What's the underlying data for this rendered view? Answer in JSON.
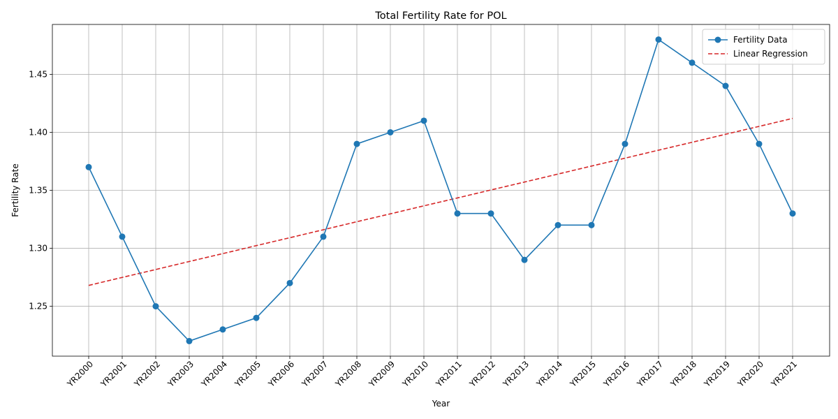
{
  "chart_data": {
    "type": "line",
    "title": "Total Fertility Rate for POL",
    "xlabel": "Year",
    "ylabel": "Fertility Rate",
    "categories": [
      "YR2000",
      "YR2001",
      "YR2002",
      "YR2003",
      "YR2004",
      "YR2005",
      "YR2006",
      "YR2007",
      "YR2008",
      "YR2009",
      "YR2010",
      "YR2011",
      "YR2012",
      "YR2013",
      "YR2014",
      "YR2015",
      "YR2016",
      "YR2017",
      "YR2018",
      "YR2019",
      "YR2020",
      "YR2021"
    ],
    "series": [
      {
        "name": "Fertility Data",
        "style": "solid-with-markers",
        "color": "#1f77b4",
        "values": [
          1.37,
          1.31,
          1.25,
          1.22,
          1.23,
          1.24,
          1.27,
          1.31,
          1.39,
          1.4,
          1.41,
          1.33,
          1.33,
          1.29,
          1.32,
          1.32,
          1.39,
          1.48,
          1.46,
          1.44,
          1.39,
          1.33
        ]
      },
      {
        "name": "Linear Regression",
        "style": "dashed",
        "color": "#d62728",
        "values": [
          1.268,
          1.2749,
          1.2817,
          1.2886,
          1.2954,
          1.3023,
          1.3091,
          1.316,
          1.3229,
          1.3297,
          1.3366,
          1.3434,
          1.3503,
          1.3571,
          1.364,
          1.3709,
          1.3777,
          1.3846,
          1.3914,
          1.3983,
          1.4051,
          1.412
        ]
      }
    ],
    "yticks": [
      "1.25",
      "1.30",
      "1.35",
      "1.40",
      "1.45"
    ],
    "ylim": [
      1.207,
      1.493
    ],
    "grid": true,
    "legend_position": "top-right"
  }
}
